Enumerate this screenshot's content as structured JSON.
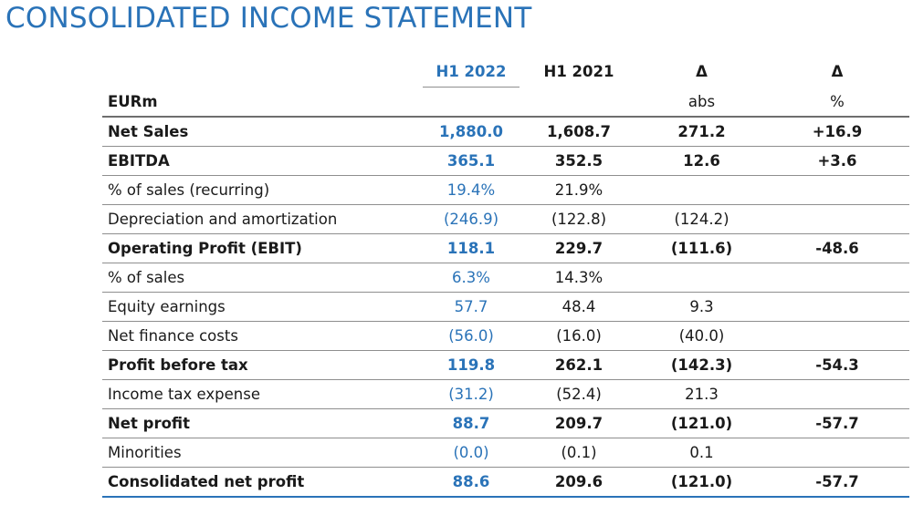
{
  "title": "CONSOLIDATED INCOME STATEMENT",
  "header": {
    "col_h1_2022": "H1 2022",
    "col_h1_2021": "H1 2021",
    "col_delta_abs": "Δ",
    "col_delta_pct": "Δ"
  },
  "units": {
    "currency": "EURm",
    "abs": "abs",
    "pct": "%"
  },
  "rows": [
    {
      "label": "Net Sales",
      "h1_2022": "1,880.0",
      "h1_2021": "1,608.7",
      "delta_abs": "271.2",
      "delta_pct": "+16.9",
      "bold": true
    },
    {
      "label": "EBITDA",
      "h1_2022": "365.1",
      "h1_2021": "352.5",
      "delta_abs": "12.6",
      "delta_pct": "+3.6",
      "bold": true
    },
    {
      "label": "% of sales (recurring)",
      "h1_2022": "19.4%",
      "h1_2021": "21.9%",
      "delta_abs": "",
      "delta_pct": "",
      "bold": false
    },
    {
      "label": "Depreciation and amortization",
      "h1_2022": "(246.9)",
      "h1_2021": "(122.8)",
      "delta_abs": "(124.2)",
      "delta_pct": "",
      "bold": false
    },
    {
      "label": "Operating Profit (EBIT)",
      "h1_2022": "118.1",
      "h1_2021": "229.7",
      "delta_abs": "(111.6)",
      "delta_pct": "-48.6",
      "bold": true
    },
    {
      "label": "% of sales",
      "h1_2022": "6.3%",
      "h1_2021": "14.3%",
      "delta_abs": "",
      "delta_pct": "",
      "bold": false
    },
    {
      "label": "Equity earnings",
      "h1_2022": "57.7",
      "h1_2021": "48.4",
      "delta_abs": "9.3",
      "delta_pct": "",
      "bold": false
    },
    {
      "label": "Net finance costs",
      "h1_2022": "(56.0)",
      "h1_2021": "(16.0)",
      "delta_abs": "(40.0)",
      "delta_pct": "",
      "bold": false
    },
    {
      "label": "Profit before tax",
      "h1_2022": "119.8",
      "h1_2021": "262.1",
      "delta_abs": "(142.3)",
      "delta_pct": "-54.3",
      "bold": true
    },
    {
      "label": "Income tax expense",
      "h1_2022": "(31.2)",
      "h1_2021": "(52.4)",
      "delta_abs": "21.3",
      "delta_pct": "",
      "bold": false
    },
    {
      "label": "Net profit",
      "h1_2022": "88.7",
      "h1_2021": "209.7",
      "delta_abs": "(121.0)",
      "delta_pct": "-57.7",
      "bold": true
    },
    {
      "label": "Minorities",
      "h1_2022": "(0.0)",
      "h1_2021": "(0.1)",
      "delta_abs": "0.1",
      "delta_pct": "",
      "bold": false
    },
    {
      "label": "Consolidated net profit",
      "h1_2022": "88.6",
      "h1_2021": "209.6",
      "delta_abs": "(121.0)",
      "delta_pct": "-57.7",
      "bold": true
    }
  ],
  "colors": {
    "accent": "#2a73b8",
    "rule": "#8e8e8e",
    "text": "#1a1a1a"
  }
}
